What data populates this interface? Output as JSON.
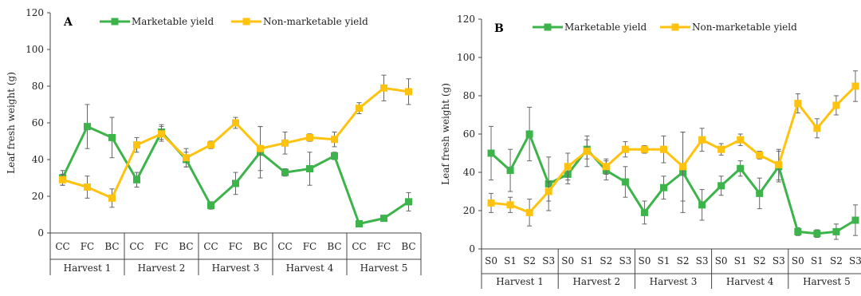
{
  "chart_data": [
    {
      "type": "line",
      "panel_label": "A",
      "ylabel": "Leaf fresh weight (g)",
      "ylim": [
        0,
        120
      ],
      "yticks": [
        0,
        20,
        40,
        60,
        80,
        100,
        120
      ],
      "categories": [
        "CC",
        "FC",
        "BC",
        "CC",
        "FC",
        "BC",
        "CC",
        "FC",
        "BC",
        "CC",
        "FC",
        "BC",
        "CC",
        "FC",
        "BC"
      ],
      "groups": [
        "Harvest 1",
        "Harvest 2",
        "Harvest 3",
        "Harvest 4",
        "Harvest 5"
      ],
      "series": [
        {
          "name": "Marketable yield",
          "color": "#3cb44b",
          "values": [
            30,
            58,
            52,
            29,
            55,
            40,
            15,
            27,
            44,
            33,
            35,
            42,
            5,
            8,
            17
          ],
          "errors": [
            4,
            12,
            11,
            4,
            4,
            4,
            2,
            6,
            14,
            2,
            9,
            2,
            1,
            1,
            5
          ]
        },
        {
          "name": "Non-marketable yield",
          "color": "#ffc20e",
          "values": [
            29,
            25,
            19,
            48,
            54,
            41,
            48,
            60,
            46,
            49,
            52,
            51,
            68,
            79,
            77
          ],
          "errors": [
            3,
            6,
            5,
            4,
            4,
            5,
            2,
            3,
            12,
            6,
            2,
            4,
            3,
            7,
            7
          ]
        }
      ]
    },
    {
      "type": "line",
      "panel_label": "B",
      "ylabel": "Leaf fresh weight (g)",
      "ylim": [
        0,
        120
      ],
      "yticks": [
        0,
        20,
        40,
        60,
        80,
        100,
        120
      ],
      "categories": [
        "S0",
        "S1",
        "S2",
        "S3",
        "S0",
        "S1",
        "S2",
        "S3",
        "S0",
        "S1",
        "S2",
        "S3",
        "S0",
        "S1",
        "S2",
        "S3",
        "S0",
        "S1",
        "S2",
        "S3"
      ],
      "groups": [
        "Harvest 1",
        "Harvest 2",
        "Harvest 3",
        "Harvest 4",
        "Harvest 5"
      ],
      "series": [
        {
          "name": "Marketable yield",
          "color": "#3cb44b",
          "values": [
            50,
            41,
            60,
            34,
            39,
            52,
            41,
            35,
            19,
            32,
            40,
            23,
            33,
            42,
            29,
            43,
            9,
            8,
            9,
            15
          ],
          "errors": [
            14,
            11,
            14,
            14,
            5,
            5,
            5,
            8,
            6,
            6,
            21,
            8,
            5,
            4,
            8,
            8,
            2,
            2,
            4,
            8
          ]
        },
        {
          "name": "Non-marketable yield",
          "color": "#ffc20e",
          "values": [
            24,
            23,
            19,
            30,
            43,
            51,
            43,
            52,
            52,
            52,
            43,
            57,
            52,
            57,
            49,
            44,
            76,
            63,
            75,
            85
          ],
          "errors": [
            5,
            4,
            7,
            5,
            7,
            8,
            4,
            4,
            2,
            7,
            18,
            6,
            3,
            3,
            2,
            8,
            5,
            5,
            5,
            8
          ]
        }
      ]
    }
  ]
}
